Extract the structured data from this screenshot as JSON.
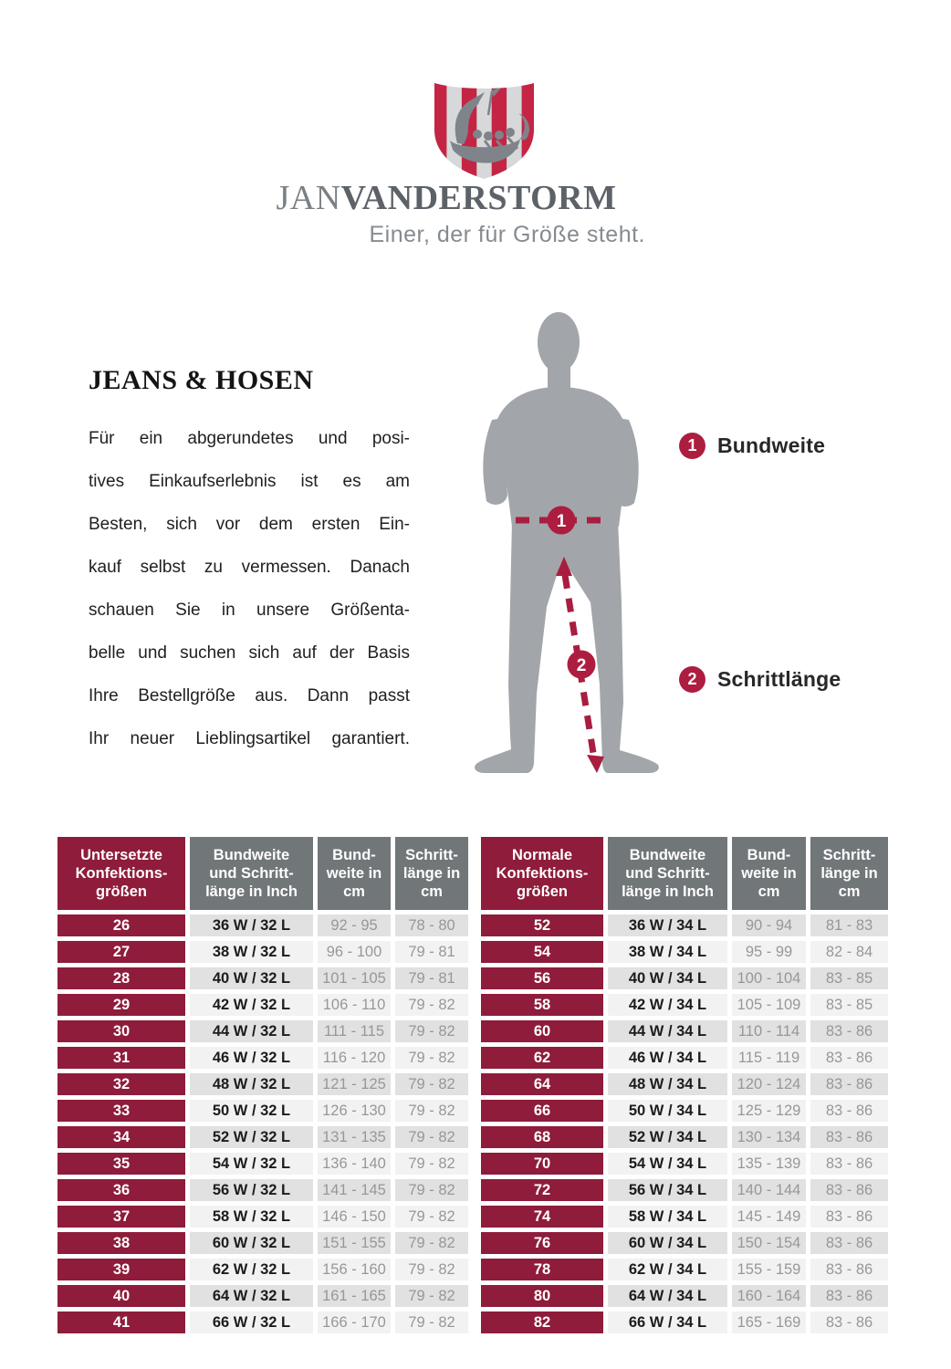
{
  "brand": {
    "wordmark_light": "JAN",
    "wordmark_bold": "VANDERSTORM",
    "tagline": "Einer, der für Größe steht.",
    "logo_icon": "viking-ship-shield",
    "logo_colors": {
      "stripe_red": "#c42545",
      "stripe_gray": "#d7d8d9",
      "ship_gray": "#7f838a"
    }
  },
  "section": {
    "title": "JEANS & HOSEN",
    "intro_lines": [
      "Für ein abgerundetes und posi-",
      "tives Einkaufserlebnis ist es am",
      "Besten, sich vor dem ersten Ein-",
      "kauf selbst zu vermessen. Danach",
      "schauen Sie in unsere Größenta-",
      "belle und suchen sich auf der Basis",
      "Ihre Bestellgröße aus. Dann passt",
      "Ihr neuer Lieblingsartikel garantiert."
    ]
  },
  "diagram": {
    "figure": "male-body-silhouette",
    "callouts": [
      {
        "number": "1",
        "label": "Bundweite"
      },
      {
        "number": "2",
        "label": "Schrittlänge"
      }
    ]
  },
  "size_table": {
    "groups": [
      {
        "headers": [
          "Untersetzte\nKonfektions-\ngrößen",
          "Bundweite\nund Schritt-\nlänge in Inch",
          "Bund-\nweite in\ncm",
          "Schritt-\nlänge in\ncm"
        ],
        "rows": [
          [
            "26",
            "36 W / 32 L",
            "92 - 95",
            "78 - 80"
          ],
          [
            "27",
            "38 W / 32 L",
            "96 - 100",
            "79 - 81"
          ],
          [
            "28",
            "40 W / 32 L",
            "101 - 105",
            "79 - 81"
          ],
          [
            "29",
            "42 W / 32 L",
            "106 - 110",
            "79 - 82"
          ],
          [
            "30",
            "44 W / 32 L",
            "111 - 115",
            "79 - 82"
          ],
          [
            "31",
            "46 W / 32 L",
            "116 - 120",
            "79 - 82"
          ],
          [
            "32",
            "48 W / 32 L",
            "121 - 125",
            "79 - 82"
          ],
          [
            "33",
            "50 W / 32 L",
            "126 - 130",
            "79 - 82"
          ],
          [
            "34",
            "52 W / 32 L",
            "131 - 135",
            "79 - 82"
          ],
          [
            "35",
            "54 W / 32 L",
            "136 - 140",
            "79 - 82"
          ],
          [
            "36",
            "56 W / 32 L",
            "141 - 145",
            "79 - 82"
          ],
          [
            "37",
            "58 W / 32 L",
            "146 - 150",
            "79 - 82"
          ],
          [
            "38",
            "60 W / 32 L",
            "151 - 155",
            "79 - 82"
          ],
          [
            "39",
            "62 W / 32 L",
            "156 - 160",
            "79 - 82"
          ],
          [
            "40",
            "64 W / 32 L",
            "161 - 165",
            "79 - 82"
          ],
          [
            "41",
            "66 W / 32 L",
            "166 - 170",
            "79 - 82"
          ]
        ]
      },
      {
        "headers": [
          "Normale\nKonfektions-\ngrößen",
          "Bundweite\nund Schritt-\nlänge in Inch",
          "Bund-\nweite in\ncm",
          "Schritt-\nlänge in\ncm"
        ],
        "rows": [
          [
            "52",
            "36 W / 34 L",
            "90 - 94",
            "81 - 83"
          ],
          [
            "54",
            "38 W / 34 L",
            "95 - 99",
            "82 - 84"
          ],
          [
            "56",
            "40 W / 34 L",
            "100 - 104",
            "83 - 85"
          ],
          [
            "58",
            "42 W / 34 L",
            "105 - 109",
            "83 - 85"
          ],
          [
            "60",
            "44 W / 34 L",
            "110 - 114",
            "83 - 86"
          ],
          [
            "62",
            "46 W / 34 L",
            "115 - 119",
            "83 - 86"
          ],
          [
            "64",
            "48 W / 34 L",
            "120 - 124",
            "83 - 86"
          ],
          [
            "66",
            "50 W / 34 L",
            "125 - 129",
            "83 - 86"
          ],
          [
            "68",
            "52 W / 34 L",
            "130 - 134",
            "83 - 86"
          ],
          [
            "70",
            "54 W / 34 L",
            "135 - 139",
            "83 - 86"
          ],
          [
            "72",
            "56 W / 34 L",
            "140 - 144",
            "83 - 86"
          ],
          [
            "74",
            "58 W / 34 L",
            "145 - 149",
            "83 - 86"
          ],
          [
            "76",
            "60 W / 34 L",
            "150 - 154",
            "83 - 86"
          ],
          [
            "78",
            "62 W / 34 L",
            "155 - 159",
            "83 - 86"
          ],
          [
            "80",
            "64 W / 34 L",
            "160 - 164",
            "83 - 86"
          ],
          [
            "82",
            "66 W / 34 L",
            "165 - 169",
            "83 - 86"
          ]
        ]
      }
    ]
  },
  "colors": {
    "maroon": "#8e1c3a",
    "header_gray": "#717679",
    "badge_crimson": "#ad1d40",
    "silhouette_gray": "#a2a5a9",
    "row_stripe_light": "#e1e1e1",
    "row_stripe_lighter": "#f3f2f2"
  }
}
